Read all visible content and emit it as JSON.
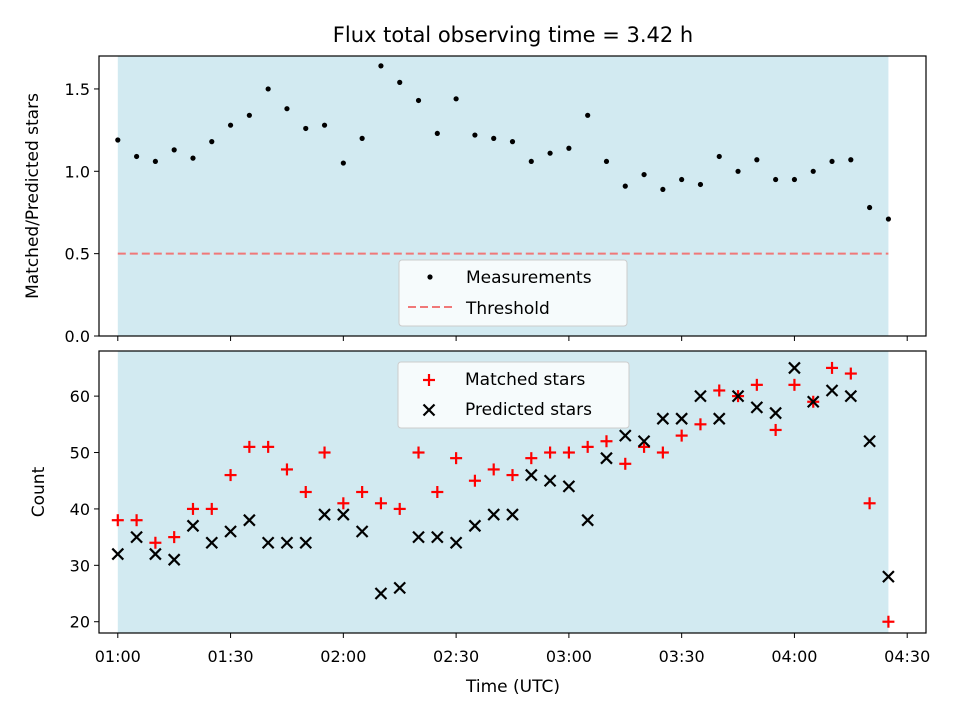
{
  "title": "Flux total observing time = 3.42 h",
  "chart_data": [
    {
      "type": "scatter",
      "panel": "top",
      "ylabel": "Matched/Predicted stars",
      "ylim": [
        0,
        1.7
      ],
      "yticks": [
        0.0,
        0.5,
        1.0,
        1.5
      ],
      "yticklabels": [
        "0.0",
        "0.5",
        "1.0",
        "1.5"
      ],
      "shaded_span": [
        "01:00",
        "04:25"
      ],
      "threshold": 0.5,
      "legend": {
        "placement": "bottom-center",
        "entries": [
          "Measurements",
          "Threshold"
        ]
      },
      "series": [
        {
          "name": "Measurements",
          "marker": "dot",
          "color": "#000000",
          "x": [
            "01:00",
            "01:05",
            "01:10",
            "01:15",
            "01:20",
            "01:25",
            "01:30",
            "01:35",
            "01:40",
            "01:45",
            "01:50",
            "01:55",
            "02:00",
            "02:05",
            "02:10",
            "02:15",
            "02:20",
            "02:25",
            "02:30",
            "02:35",
            "02:40",
            "02:45",
            "02:50",
            "02:55",
            "03:00",
            "03:05",
            "03:10",
            "03:15",
            "03:20",
            "03:25",
            "03:30",
            "03:35",
            "03:40",
            "03:45",
            "03:50",
            "03:55",
            "04:00",
            "04:05",
            "04:10",
            "04:15",
            "04:20",
            "04:25"
          ],
          "values": [
            1.19,
            1.09,
            1.06,
            1.13,
            1.08,
            1.18,
            1.28,
            1.34,
            1.5,
            1.38,
            1.26,
            1.28,
            1.05,
            1.2,
            1.64,
            1.54,
            1.43,
            1.23,
            1.44,
            1.22,
            1.2,
            1.18,
            1.06,
            1.11,
            1.14,
            1.34,
            1.06,
            0.91,
            0.98,
            0.89,
            0.95,
            0.92,
            1.09,
            1.0,
            1.07,
            0.95,
            0.95,
            1.0,
            1.06,
            1.07,
            0.78,
            0.71
          ]
        },
        {
          "name": "Threshold",
          "style": "dashed",
          "color": "#f07878",
          "x": [
            "01:00",
            "04:25"
          ],
          "values": [
            0.5,
            0.5
          ]
        }
      ]
    },
    {
      "type": "scatter",
      "panel": "bottom",
      "xlabel": "Time (UTC)",
      "ylabel": "Count",
      "ylim": [
        18,
        68
      ],
      "yticks": [
        20,
        30,
        40,
        50,
        60
      ],
      "yticklabels": [
        "20",
        "30",
        "40",
        "50",
        "60"
      ],
      "xlim": [
        "00:55",
        "04:35"
      ],
      "xticks": [
        "01:00",
        "01:30",
        "02:00",
        "02:30",
        "03:00",
        "03:30",
        "04:00",
        "04:30"
      ],
      "xticklabels": [
        "01:00",
        "01:30",
        "02:00",
        "02:30",
        "03:00",
        "03:30",
        "04:00",
        "04:30"
      ],
      "shaded_span": [
        "01:00",
        "04:25"
      ],
      "legend": {
        "placement": "top-center",
        "entries": [
          "Matched stars",
          "Predicted stars"
        ]
      },
      "x": [
        "01:00",
        "01:05",
        "01:10",
        "01:15",
        "01:20",
        "01:25",
        "01:30",
        "01:35",
        "01:40",
        "01:45",
        "01:50",
        "01:55",
        "02:00",
        "02:05",
        "02:10",
        "02:15",
        "02:20",
        "02:25",
        "02:30",
        "02:35",
        "02:40",
        "02:45",
        "02:50",
        "02:55",
        "03:00",
        "03:05",
        "03:10",
        "03:15",
        "03:20",
        "03:25",
        "03:30",
        "03:35",
        "03:40",
        "03:45",
        "03:50",
        "03:55",
        "04:00",
        "04:05",
        "04:10",
        "04:15",
        "04:20",
        "04:25"
      ],
      "series": [
        {
          "name": "Matched stars",
          "marker": "plus",
          "color": "#ff0000",
          "values": [
            38,
            38,
            34,
            35,
            40,
            40,
            46,
            51,
            51,
            47,
            43,
            50,
            41,
            43,
            41,
            40,
            50,
            43,
            49,
            45,
            47,
            46,
            49,
            50,
            50,
            51,
            52,
            48,
            51,
            50,
            53,
            55,
            61,
            60,
            62,
            54,
            62,
            59,
            65,
            64,
            41,
            20
          ]
        },
        {
          "name": "Predicted stars",
          "marker": "x",
          "color": "#000000",
          "values": [
            32,
            35,
            32,
            31,
            37,
            34,
            36,
            38,
            34,
            34,
            34,
            39,
            39,
            36,
            25,
            26,
            35,
            35,
            34,
            37,
            39,
            39,
            46,
            45,
            44,
            38,
            49,
            53,
            52,
            56,
            56,
            60,
            56,
            60,
            58,
            57,
            65,
            59,
            61,
            60,
            52,
            28
          ]
        }
      ]
    }
  ]
}
